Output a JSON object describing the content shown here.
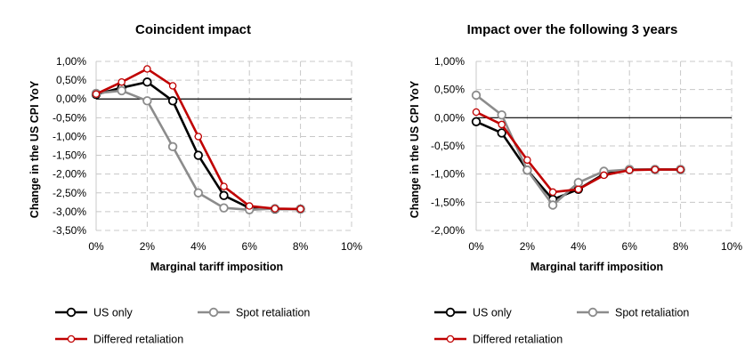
{
  "chart_data": [
    {
      "type": "line",
      "title": "Coincident impact",
      "xlabel": "Marginal tariff imposition",
      "ylabel": "Change in the US CPI YoY",
      "x": [
        0,
        1,
        2,
        3,
        4,
        5,
        6,
        7,
        8
      ],
      "xlim": [
        0,
        10
      ],
      "ylim": [
        -3.5,
        1.0
      ],
      "x_ticks": [
        0,
        2,
        4,
        6,
        8,
        10
      ],
      "x_tick_labels": [
        "0%",
        "2%",
        "4%",
        "6%",
        "8%",
        "10%"
      ],
      "y_ticks": [
        1.0,
        0.5,
        0.0,
        -0.5,
        -1.0,
        -1.5,
        -2.0,
        -2.5,
        -3.0,
        -3.5
      ],
      "y_tick_labels": [
        "1,00%",
        "0,50%",
        "0,00%",
        "-0,50%",
        "-1,00%",
        "-1,50%",
        "-2,00%",
        "-2,50%",
        "-3,00%",
        "-3,50%"
      ],
      "grid": true,
      "series": [
        {
          "name": "US only",
          "color": "#000000",
          "values": [
            0.12,
            0.3,
            0.45,
            -0.05,
            -1.5,
            -2.57,
            -2.9,
            -2.93,
            -2.93
          ]
        },
        {
          "name": "Spot retaliation",
          "color": "#8c8c8c",
          "values": [
            0.15,
            0.22,
            -0.05,
            -1.27,
            -2.5,
            -2.9,
            -2.95,
            -2.92,
            -2.93
          ]
        },
        {
          "name": "Differed retaliation",
          "color": "#c00000",
          "values": [
            0.13,
            0.45,
            0.8,
            0.35,
            -1.0,
            -2.33,
            -2.85,
            -2.92,
            -2.93
          ]
        }
      ]
    },
    {
      "type": "line",
      "title": "Impact over the following 3 years",
      "xlabel": "Marginal tariff imposition",
      "ylabel": "Change in the US CPI YoY",
      "x": [
        0,
        1,
        2,
        3,
        4,
        5,
        6,
        7,
        8
      ],
      "xlim": [
        0,
        10
      ],
      "ylim": [
        -2.0,
        1.0
      ],
      "x_ticks": [
        0,
        2,
        4,
        6,
        8,
        10
      ],
      "x_tick_labels": [
        "0%",
        "2%",
        "4%",
        "6%",
        "8%",
        "10%"
      ],
      "y_ticks": [
        1.0,
        0.5,
        0.0,
        -0.5,
        -1.0,
        -1.5,
        -2.0
      ],
      "y_tick_labels": [
        "1,00%",
        "0,50%",
        "0,00%",
        "-0,50%",
        "-1,00%",
        "-1,50%",
        "-2,00%"
      ],
      "grid": true,
      "series": [
        {
          "name": "US only",
          "color": "#000000",
          "values": [
            -0.07,
            -0.27,
            -0.93,
            -1.45,
            -1.27,
            -1.0,
            -0.92,
            -0.92,
            -0.92
          ]
        },
        {
          "name": "Spot retaliation",
          "color": "#8c8c8c",
          "values": [
            0.4,
            0.05,
            -0.93,
            -1.55,
            -1.15,
            -0.95,
            -0.92,
            -0.92,
            -0.92
          ]
        },
        {
          "name": "Differed retaliation",
          "color": "#c00000",
          "values": [
            0.1,
            -0.12,
            -0.75,
            -1.32,
            -1.27,
            -1.02,
            -0.93,
            -0.92,
            -0.92
          ]
        }
      ]
    }
  ],
  "legend": {
    "placement": "bottom",
    "entries": [
      {
        "name": "US only",
        "color": "#000000"
      },
      {
        "name": "Spot retaliation",
        "color": "#8c8c8c"
      },
      {
        "name": "Differed retaliation",
        "color": "#c00000"
      }
    ]
  }
}
